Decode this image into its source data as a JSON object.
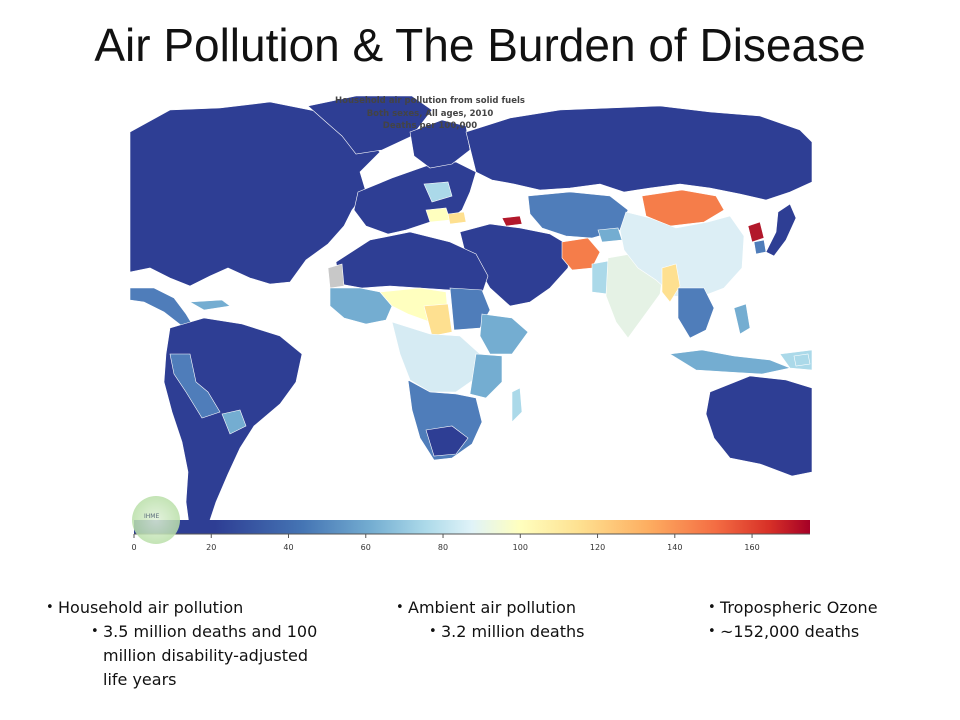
{
  "slide": {
    "title": "Air Pollution & The Burden of Disease"
  },
  "map": {
    "title_lines": [
      "Household air pollution from solid fuels",
      "Both sexes, All ages, 2010",
      "Deaths per 100,000"
    ],
    "colorbar": {
      "min": 0,
      "max": 175,
      "ticks": [
        "0",
        "20",
        "40",
        "60",
        "80",
        "100",
        "120",
        "140",
        "160"
      ],
      "colors": [
        "#2e3e94",
        "#4575b4",
        "#74add1",
        "#abd9e9",
        "#e0f3f8",
        "#ffffbf",
        "#fee090",
        "#fdae61",
        "#f46d43",
        "#d73027",
        "#a50026"
      ]
    },
    "logo_text": "IHME"
  },
  "bullets": [
    {
      "label": "Household air pollution",
      "sub": [
        "3.5 million deaths and 100 million disability-adjusted life years"
      ]
    },
    {
      "label": "Ambient air pollution",
      "sub": [
        "3.2 million deaths"
      ]
    },
    {
      "label": "Tropospheric Ozone",
      "sub": [
        "~152,000 deaths"
      ]
    }
  ]
}
